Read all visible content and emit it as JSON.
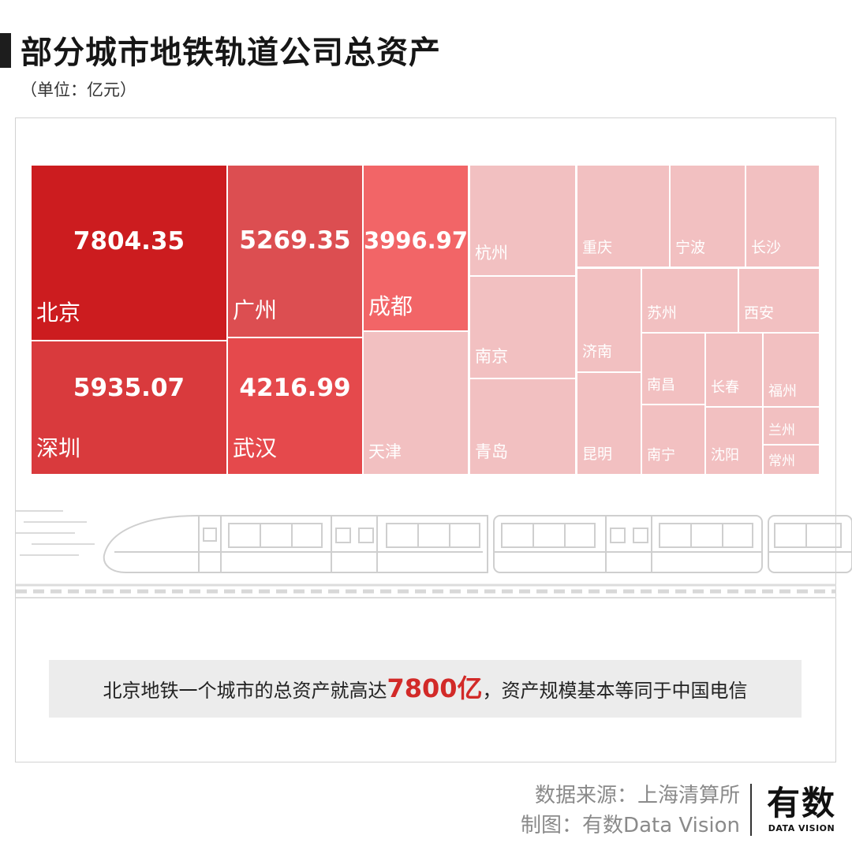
{
  "header": {
    "title": "部分城市地铁轨道公司总资产",
    "unit": "（单位：亿元）"
  },
  "chart_data": {
    "type": "treemap",
    "title": "部分城市地铁轨道公司总资产",
    "unit": "亿元",
    "items": [
      {
        "name": "北京",
        "value": 7804.35,
        "label": "7804.35"
      },
      {
        "name": "深圳",
        "value": 5935.07,
        "label": "5935.07"
      },
      {
        "name": "广州",
        "value": 5269.35,
        "label": "5269.35"
      },
      {
        "name": "武汉",
        "value": 4216.99,
        "label": "4216.99"
      },
      {
        "name": "成都",
        "value": 3996.97,
        "label": "3996.97"
      },
      {
        "name": "天津",
        "value": null
      },
      {
        "name": "杭州",
        "value": null
      },
      {
        "name": "南京",
        "value": null
      },
      {
        "name": "青岛",
        "value": null
      },
      {
        "name": "重庆",
        "value": null
      },
      {
        "name": "宁波",
        "value": null
      },
      {
        "name": "长沙",
        "value": null
      },
      {
        "name": "济南",
        "value": null
      },
      {
        "name": "昆明",
        "value": null
      },
      {
        "name": "苏州",
        "value": null
      },
      {
        "name": "西安",
        "value": null
      },
      {
        "name": "南昌",
        "value": null
      },
      {
        "name": "长春",
        "value": null
      },
      {
        "name": "福州",
        "value": null
      },
      {
        "name": "南宁",
        "value": null
      },
      {
        "name": "沈阳",
        "value": null
      },
      {
        "name": "兰州",
        "value": null
      },
      {
        "name": "常州",
        "value": null
      }
    ],
    "colors": {
      "北京": "#cc1c1f",
      "深圳": "#d93a3d",
      "广州": "#dc4e51",
      "武汉": "#e5494c",
      "成都": "#f26567",
      "other": "#f2c0c1"
    }
  },
  "callout": {
    "before": "北京地铁一个城市的总资产就高达",
    "highlight": "7800亿",
    "after": "，资产规模基本等同于中国电信"
  },
  "footer": {
    "source": "数据来源：上海清算所",
    "credit": "制图：有数Data Vision"
  },
  "logo": {
    "cn": "有数",
    "en": "DATA VISION"
  }
}
